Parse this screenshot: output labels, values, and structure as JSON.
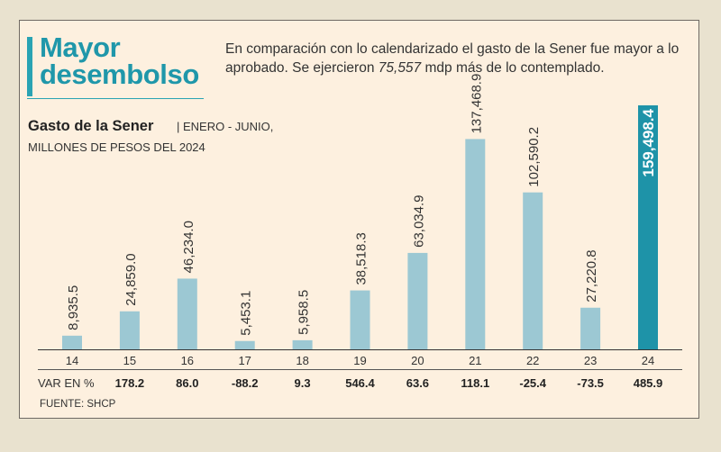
{
  "header": {
    "title": "Mayor desembolso",
    "subtitle_before": "En comparación con lo calendarizado el gasto de la Sener fue mayor a lo aprobado. Se ejercieron ",
    "subtitle_amount": "75,557",
    "subtitle_after": " mdp más de lo contemplado."
  },
  "chart_heading": {
    "title": "Gasto de la Sener",
    "subtitle_line1": "| ENERO - JUNIO,",
    "subtitle_line2": "MILLONES DE PESOS DEL 2024"
  },
  "var_row": {
    "label": "VAR EN %"
  },
  "source": "FUENTE: SHCP",
  "colors": {
    "bar": "#9cc8d3",
    "highlight": "#1e93a8",
    "accent": "#2aa3b3"
  },
  "chart_data": {
    "type": "bar",
    "categories": [
      "14",
      "15",
      "16",
      "17",
      "18",
      "19",
      "20",
      "21",
      "22",
      "23",
      "24"
    ],
    "values": [
      8935.5,
      24859.0,
      46234.0,
      5453.1,
      5958.5,
      38518.3,
      63034.9,
      137468.9,
      102590.2,
      27220.8,
      159498.4
    ],
    "value_labels": [
      "8,935.5",
      "24,859.0",
      "46,234.0",
      "5,453.1",
      "5,958.5",
      "38,518.3",
      "63,034.9",
      "137,468.9",
      "102,590.2",
      "27,220.8",
      "159,498.4"
    ],
    "variation_pct": [
      "178.2",
      "86.0",
      "-88.2",
      "9.3",
      "546.4",
      "63.6",
      "118.1",
      "-25.4",
      "-73.5",
      "485.9"
    ],
    "highlight_index": 10,
    "ylim": [
      0,
      159498.4
    ],
    "xlabel": "",
    "ylabel": "",
    "grid": false
  }
}
